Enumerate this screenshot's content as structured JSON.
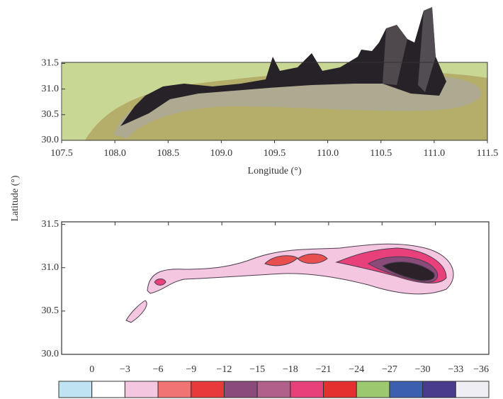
{
  "chart_data": [
    {
      "type": "surface",
      "xlabel": "Longitude (°)",
      "xlim": [
        107.5,
        111.5
      ],
      "xticks": [
        107.5,
        {
          "value": 108.0,
          "label": "108.0"
        },
        108.5,
        {
          "value": 109.0,
          "label": "109.0"
        },
        109.5,
        {
          "value": 110.0,
          "label": "110.0"
        },
        110.5,
        {
          "value": 111.0,
          "label": "111.0"
        },
        111.5
      ],
      "ylim": [
        30.0,
        31.52
      ],
      "yticks": [
        {
          "value": 30.0,
          "label": "30.0"
        },
        30.5,
        {
          "value": 31.0,
          "label": "31.0"
        },
        31.5
      ]
    },
    {
      "type": "contour",
      "ylabel": "Latitude (°)",
      "xlim": [
        107.5,
        111.5
      ],
      "xticks": [
        108.0,
        108.5,
        109.0,
        109.5,
        110.0,
        110.5,
        111.0
      ],
      "ylim": [
        30.0,
        31.53
      ],
      "yticks": [
        {
          "value": 30.0,
          "label": "30.0"
        },
        30.5,
        {
          "value": 31.0,
          "label": "31.0"
        },
        31.5
      ]
    },
    {
      "type": "colorbar",
      "ticks": [
        0,
        {
          "value": -3,
          "label": "−3"
        },
        {
          "value": -6,
          "label": "−6"
        },
        {
          "value": -9,
          "label": "−9"
        },
        {
          "value": -12,
          "label": "−12"
        },
        {
          "value": -15,
          "label": "−15"
        },
        {
          "value": -18,
          "label": "−18"
        },
        {
          "value": -21,
          "label": "−21"
        },
        {
          "value": -24,
          "label": "−24"
        },
        {
          "value": -27,
          "label": "−27"
        },
        {
          "value": -30,
          "label": "−30"
        },
        {
          "value": -33,
          "label": "−33"
        },
        {
          "value": -36,
          "label": "−36"
        }
      ],
      "colors": [
        "#bfe3f2",
        "#ffffff",
        "#f5c6df",
        "#f07474",
        "#e83a3a",
        "#8a4a7a",
        "#b0608a",
        "#e8407a",
        "#e53030",
        "#9cc870",
        "#3c5fb0",
        "#4a3c8c",
        "#eeeef4"
      ]
    }
  ]
}
